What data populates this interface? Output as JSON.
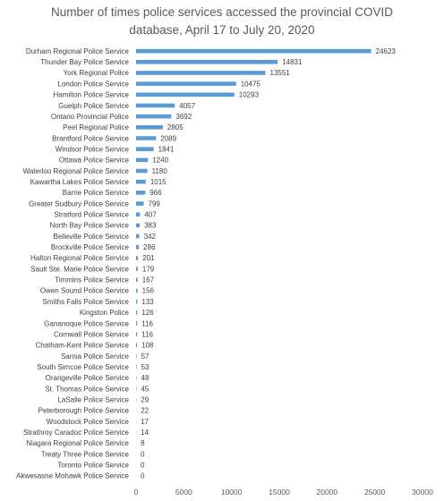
{
  "chart_data": {
    "type": "bar",
    "orientation": "horizontal",
    "title_line1": "Number of times police services accessed the provincial COVID",
    "title_line2": "database, April 17 to July 20, 2020",
    "xlabel": "",
    "ylabel": "",
    "xlim": [
      0,
      30000
    ],
    "x_ticks": [
      0,
      5000,
      10000,
      15000,
      20000,
      25000,
      30000
    ],
    "x_tick_labels": [
      "0",
      "5000",
      "10000",
      "15000",
      "20000",
      "25000",
      "30000"
    ],
    "grid": false,
    "legend": "none",
    "bar_color": "#5b9bd5",
    "categories": [
      "Durham Regional Police Service",
      "Thunder Bay Police Service",
      "York Regional Police",
      "London Police Service",
      "Hamilton Police Service",
      "Guelph Police Service",
      "Ontario Provincial Police",
      "Peel Regional Police",
      "Brantford Police Service",
      "Windsor Police Service",
      "Ottawa Police Service",
      "Waterloo Regional Police Service",
      "Kawartha Lakes Police Service",
      "Barrie Police Service",
      "Greater Sudbury Police Service",
      "Stratford Police Service",
      "North Bay Police Service",
      "Belleville Police Service",
      "Brockville Police Service",
      "Halton Regional Police Service",
      "Sault Ste. Marie Police Service",
      "Timmins Police Service",
      "Owen Sound Police Service",
      "Smiths Falls Police Service",
      "Kingston Police",
      "Gananoque Police Service",
      "Cornwall Police Service",
      "Chatham-Kent Police Service",
      "Sarnia Police Service",
      "South Simcoe Police Service",
      "Orangeville Police Service",
      "St. Thomas Police Service",
      "LaSalle Police Service",
      "Peterborough Police Service",
      "Woodstock Police Service",
      "Strathroy Caradoc Police Service",
      "Niagara Regional Police Service",
      "Treaty Three Police Service",
      "Toronto Police Service",
      "Akwesasne Mohawk Police Service"
    ],
    "values": [
      24623,
      14831,
      13551,
      10475,
      10293,
      4057,
      3692,
      2805,
      2089,
      1841,
      1240,
      1180,
      1015,
      966,
      799,
      407,
      383,
      342,
      286,
      201,
      179,
      167,
      156,
      133,
      126,
      116,
      116,
      108,
      57,
      53,
      48,
      45,
      29,
      22,
      17,
      14,
      8,
      0,
      0,
      0
    ]
  }
}
